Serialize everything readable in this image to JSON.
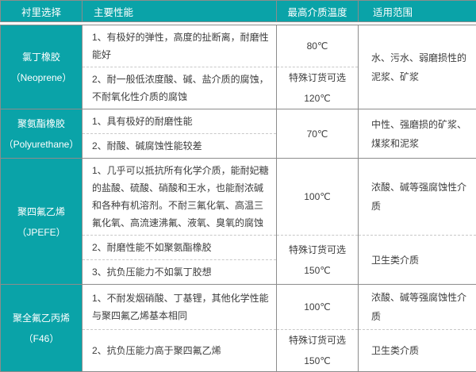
{
  "table": {
    "headers": [
      "衬里选择",
      "主要性能",
      "最高介质温度",
      "适用范围"
    ],
    "groups": [
      {
        "material": "氯丁橡胶",
        "material_en": "（Neoprene）",
        "performance": [
          "1、有极好的弹性，高度的扯断离，耐磨性能好",
          "2、耐一般低浓度酸、碱、盐介质的腐蚀，不耐氧化性介质的腐蚀"
        ],
        "temps": [
          "80℃",
          "特殊订货可选\n120℃"
        ],
        "scopes": [
          "水、污水、弱磨损性的泥浆、矿浆"
        ]
      },
      {
        "material": "聚氨酯橡胶",
        "material_en": "（Polyurethane）",
        "performance": [
          "1、具有极好的耐磨性能",
          "2、耐酸、碱腐蚀性能较差"
        ],
        "temps": [
          "70℃"
        ],
        "scopes": [
          "中性、强磨损的矿浆、煤浆和泥浆"
        ]
      },
      {
        "material": "聚四氟乙烯",
        "material_en": "（JPEFE）",
        "performance": [
          "1、几乎可以抵抗所有化学介质，能耐妃糖的盐酸、硫酸、硝酸和王水，也能耐浓碱和各种有机溶剂。不耐三氟化氧、高温三氟化氧、高流速沸氟、液氧、臭氧的腐蚀",
          "2、耐磨性能不如聚氨酯橡胶",
          "3、抗负压能力不如氯丁胶想"
        ],
        "temps": [
          "100℃",
          "特殊订货可选\n150℃"
        ],
        "scopes": [
          "浓酸、碱等强腐蚀性介质",
          "卫生类介质"
        ]
      },
      {
        "material": "聚全氟乙丙烯",
        "material_en": "（F46）",
        "performance": [
          "1、不耐发烟硝酸、丁基锂，其他化学性能与聚四氟乙烯基本相同",
          "2、抗负压能力高于聚四氟乙烯"
        ],
        "temps": [
          "100℃",
          "特殊订货可选\n150℃"
        ],
        "scopes": [
          "浓酸、碱等强腐蚀性介质",
          "卫生类介质"
        ]
      }
    ]
  },
  "colors": {
    "accent_teal": "#0aa3a8",
    "border_solid": "#8c8c8c",
    "border_dashed": "#c9c9c9",
    "text_body": "#3d3d3d",
    "header_text": "#ffffff"
  }
}
